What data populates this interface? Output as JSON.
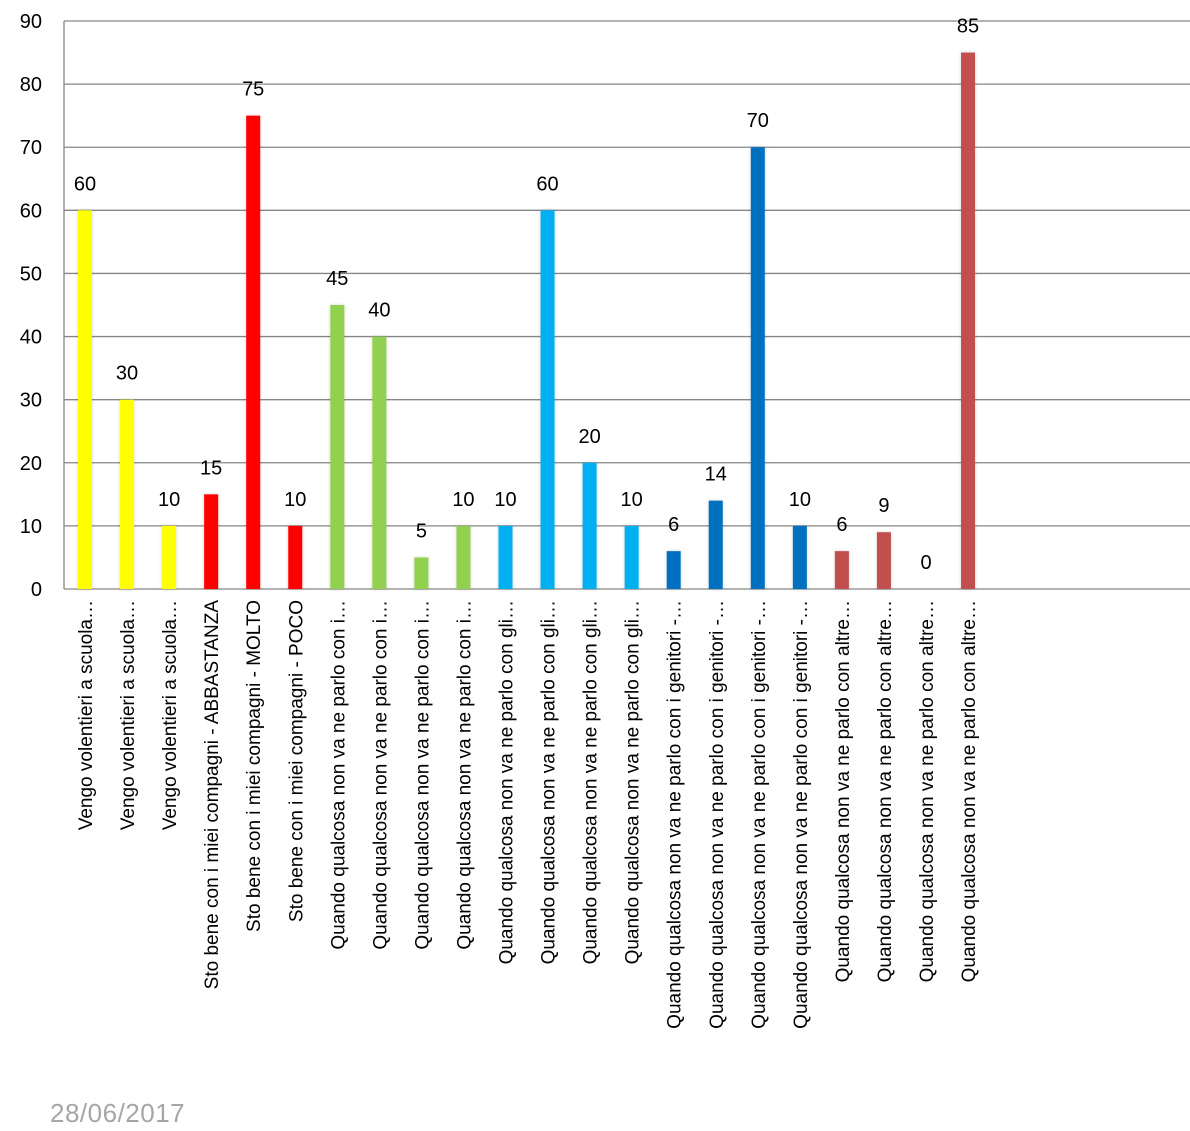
{
  "chart_data": {
    "type": "bar",
    "ylim": [
      0,
      90
    ],
    "yticks": [
      0,
      10,
      20,
      30,
      40,
      50,
      60,
      70,
      80,
      90
    ],
    "grid": true,
    "categories": [
      "Vengo volentieri a scuola…",
      "Vengo volentieri a scuola…",
      "Vengo volentieri a scuola…",
      "Sto bene con i miei compagni - ABBASTANZA",
      "Sto bene con i miei compagni - MOLTO",
      "Sto bene con i miei compagni - POCO",
      "Quando qualcosa non va ne parlo con i…",
      "Quando qualcosa non va ne parlo con i…",
      "Quando qualcosa non va ne parlo con i…",
      "Quando qualcosa non va ne parlo con i…",
      "Quando qualcosa non va ne parlo con gli…",
      "Quando qualcosa non va ne parlo con gli…",
      "Quando qualcosa non va ne parlo con gli…",
      "Quando qualcosa non va ne parlo con gli…",
      "Quando qualcosa non va ne parlo con i genitori -…",
      "Quando qualcosa non va ne parlo con i genitori -…",
      "Quando qualcosa non va ne parlo con i genitori -…",
      "Quando qualcosa non va ne parlo con i genitori -…",
      "Quando qualcosa non va ne parlo con altre…",
      "Quando qualcosa non va ne parlo con altre…",
      "Quando qualcosa non va ne parlo con altre…",
      "Quando qualcosa non va ne parlo con altre…"
    ],
    "values": [
      60,
      30,
      10,
      15,
      75,
      10,
      45,
      40,
      5,
      10,
      10,
      60,
      20,
      10,
      6,
      14,
      70,
      10,
      6,
      9,
      0,
      85
    ],
    "data_labels": [
      "60",
      "30",
      "10",
      "15",
      "75",
      "10",
      "45",
      "40",
      "5",
      "10",
      "10",
      "60",
      "20",
      "10",
      "6",
      "14",
      "70",
      "10",
      "6",
      "9",
      "0",
      "85"
    ],
    "colors": [
      "#ffff00",
      "#ffff00",
      "#ffff00",
      "#ff0000",
      "#ff0000",
      "#ff0000",
      "#92d050",
      "#92d050",
      "#92d050",
      "#92d050",
      "#00b0f0",
      "#00b0f0",
      "#00b0f0",
      "#00b0f0",
      "#0070c0",
      "#0070c0",
      "#0070c0",
      "#0070c0",
      "#c0504d",
      "#c0504d",
      "#c0504d",
      "#c0504d"
    ],
    "gridline_color": "#868686",
    "axis_color": "#868686"
  },
  "footer": {
    "date": "28/06/2017",
    "date_color": "#a6a6a6"
  }
}
